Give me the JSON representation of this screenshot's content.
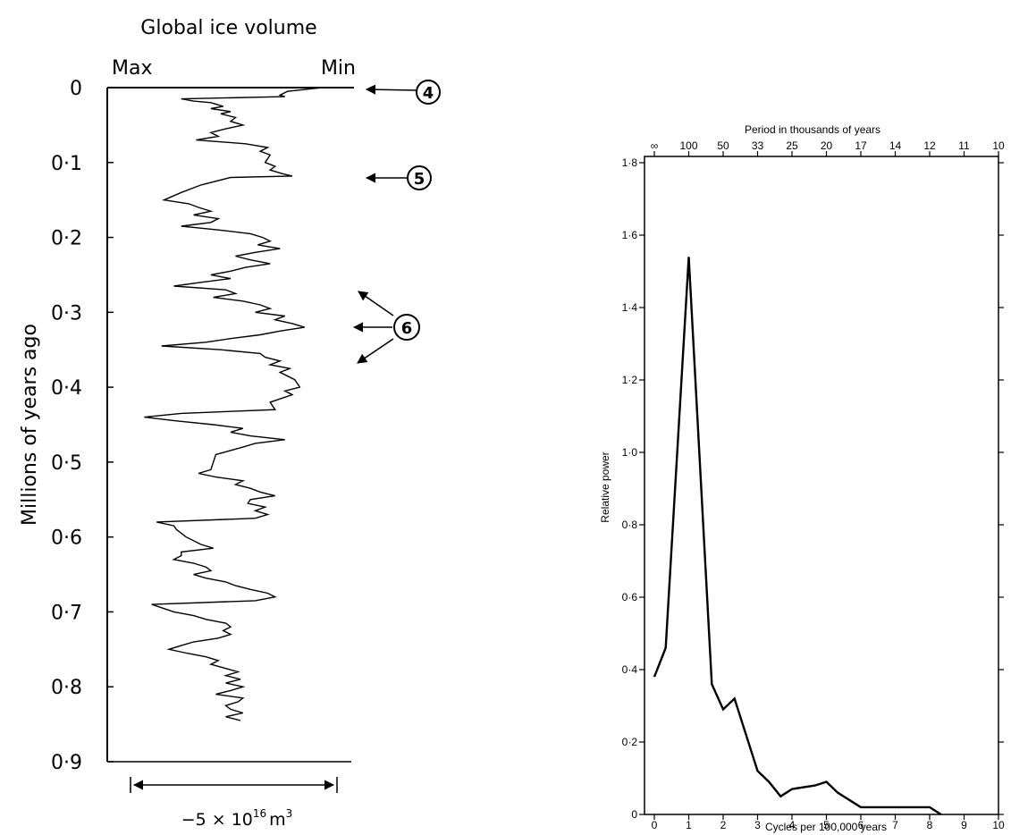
{
  "chart_data": [
    {
      "type": "line",
      "orientation": "vertical",
      "title": "Global ice volume",
      "x_end_labels": {
        "left": "Max",
        "right": "Min"
      },
      "ylabel": "Millions of years ago",
      "ylim": [
        0,
        0.9
      ],
      "y_ticks": [
        0,
        0.1,
        0.2,
        0.3,
        0.4,
        0.5,
        0.6,
        0.7,
        0.8,
        0.9
      ],
      "y_tick_labels": [
        "0",
        "0·1",
        "0·2",
        "0·3",
        "0·4",
        "0·5",
        "0·6",
        "0·7",
        "0·8",
        "0·9"
      ],
      "scale_bar": {
        "label_base": "−5 × 10",
        "label_exp": "16",
        "label_unit": "m",
        "label_unit_exp": "3"
      },
      "x_axis": "relative ice volume (0 = Max, 1 = Min)",
      "annotations": [
        {
          "label": "4",
          "age": 0.0
        },
        {
          "label": "5",
          "age": 0.12
        },
        {
          "label": "6",
          "ages": [
            0.27,
            0.32,
            0.37
          ]
        }
      ],
      "series": [
        {
          "values": [
            [
              0.0,
              0.87
            ],
            [
              0.005,
              0.73
            ],
            [
              0.01,
              0.7
            ],
            [
              0.012,
              0.72
            ],
            [
              0.015,
              0.3
            ],
            [
              0.018,
              0.35
            ],
            [
              0.02,
              0.42
            ],
            [
              0.025,
              0.47
            ],
            [
              0.028,
              0.42
            ],
            [
              0.032,
              0.5
            ],
            [
              0.035,
              0.46
            ],
            [
              0.04,
              0.52
            ],
            [
              0.045,
              0.5
            ],
            [
              0.05,
              0.55
            ],
            [
              0.055,
              0.48
            ],
            [
              0.06,
              0.42
            ],
            [
              0.065,
              0.45
            ],
            [
              0.07,
              0.36
            ],
            [
              0.075,
              0.56
            ],
            [
              0.08,
              0.65
            ],
            [
              0.085,
              0.62
            ],
            [
              0.09,
              0.66
            ],
            [
              0.1,
              0.64
            ],
            [
              0.105,
              0.68
            ],
            [
              0.11,
              0.66
            ],
            [
              0.115,
              0.71
            ],
            [
              0.118,
              0.75
            ],
            [
              0.12,
              0.5
            ],
            [
              0.13,
              0.38
            ],
            [
              0.14,
              0.3
            ],
            [
              0.15,
              0.23
            ],
            [
              0.155,
              0.33
            ],
            [
              0.16,
              0.37
            ],
            [
              0.165,
              0.42
            ],
            [
              0.17,
              0.35
            ],
            [
              0.175,
              0.45
            ],
            [
              0.18,
              0.42
            ],
            [
              0.185,
              0.3
            ],
            [
              0.19,
              0.45
            ],
            [
              0.195,
              0.58
            ],
            [
              0.2,
              0.63
            ],
            [
              0.205,
              0.66
            ],
            [
              0.21,
              0.61
            ],
            [
              0.215,
              0.7
            ],
            [
              0.22,
              0.6
            ],
            [
              0.225,
              0.52
            ],
            [
              0.23,
              0.58
            ],
            [
              0.235,
              0.66
            ],
            [
              0.24,
              0.56
            ],
            [
              0.245,
              0.5
            ],
            [
              0.25,
              0.42
            ],
            [
              0.255,
              0.5
            ],
            [
              0.26,
              0.38
            ],
            [
              0.265,
              0.27
            ],
            [
              0.27,
              0.48
            ],
            [
              0.275,
              0.52
            ],
            [
              0.28,
              0.43
            ],
            [
              0.285,
              0.55
            ],
            [
              0.29,
              0.62
            ],
            [
              0.295,
              0.66
            ],
            [
              0.3,
              0.6
            ],
            [
              0.305,
              0.72
            ],
            [
              0.31,
              0.68
            ],
            [
              0.315,
              0.75
            ],
            [
              0.32,
              0.8
            ],
            [
              0.325,
              0.7
            ],
            [
              0.33,
              0.62
            ],
            [
              0.335,
              0.5
            ],
            [
              0.34,
              0.4
            ],
            [
              0.345,
              0.22
            ],
            [
              0.35,
              0.46
            ],
            [
              0.355,
              0.62
            ],
            [
              0.36,
              0.64
            ],
            [
              0.365,
              0.7
            ],
            [
              0.37,
              0.66
            ],
            [
              0.375,
              0.74
            ],
            [
              0.38,
              0.7
            ],
            [
              0.39,
              0.76
            ],
            [
              0.4,
              0.78
            ],
            [
              0.405,
              0.72
            ],
            [
              0.41,
              0.75
            ],
            [
              0.42,
              0.66
            ],
            [
              0.43,
              0.68
            ],
            [
              0.435,
              0.3
            ],
            [
              0.44,
              0.15
            ],
            [
              0.445,
              0.28
            ],
            [
              0.45,
              0.43
            ],
            [
              0.455,
              0.55
            ],
            [
              0.46,
              0.5
            ],
            [
              0.465,
              0.58
            ],
            [
              0.47,
              0.72
            ],
            [
              0.475,
              0.6
            ],
            [
              0.48,
              0.55
            ],
            [
              0.49,
              0.44
            ],
            [
              0.5,
              0.43
            ],
            [
              0.51,
              0.42
            ],
            [
              0.515,
              0.37
            ],
            [
              0.52,
              0.44
            ],
            [
              0.525,
              0.55
            ],
            [
              0.53,
              0.52
            ],
            [
              0.535,
              0.58
            ],
            [
              0.54,
              0.62
            ],
            [
              0.545,
              0.68
            ],
            [
              0.55,
              0.58
            ],
            [
              0.555,
              0.57
            ],
            [
              0.56,
              0.64
            ],
            [
              0.565,
              0.6
            ],
            [
              0.57,
              0.65
            ],
            [
              0.575,
              0.6
            ],
            [
              0.58,
              0.2
            ],
            [
              0.585,
              0.27
            ],
            [
              0.59,
              0.28
            ],
            [
              0.6,
              0.32
            ],
            [
              0.61,
              0.38
            ],
            [
              0.615,
              0.43
            ],
            [
              0.62,
              0.3
            ],
            [
              0.625,
              0.3
            ],
            [
              0.63,
              0.27
            ],
            [
              0.635,
              0.35
            ],
            [
              0.64,
              0.4
            ],
            [
              0.645,
              0.42
            ],
            [
              0.65,
              0.35
            ],
            [
              0.655,
              0.4
            ],
            [
              0.66,
              0.48
            ],
            [
              0.665,
              0.52
            ],
            [
              0.67,
              0.58
            ],
            [
              0.675,
              0.65
            ],
            [
              0.68,
              0.68
            ],
            [
              0.685,
              0.6
            ],
            [
              0.69,
              0.18
            ],
            [
              0.7,
              0.27
            ],
            [
              0.705,
              0.35
            ],
            [
              0.71,
              0.4
            ],
            [
              0.715,
              0.48
            ],
            [
              0.72,
              0.5
            ],
            [
              0.725,
              0.47
            ],
            [
              0.73,
              0.5
            ],
            [
              0.735,
              0.45
            ],
            [
              0.74,
              0.35
            ],
            [
              0.745,
              0.3
            ],
            [
              0.75,
              0.25
            ],
            [
              0.755,
              0.32
            ],
            [
              0.76,
              0.4
            ],
            [
              0.765,
              0.45
            ],
            [
              0.77,
              0.42
            ],
            [
              0.78,
              0.53
            ],
            [
              0.785,
              0.48
            ],
            [
              0.79,
              0.54
            ],
            [
              0.795,
              0.48
            ],
            [
              0.8,
              0.55
            ],
            [
              0.805,
              0.5
            ],
            [
              0.81,
              0.44
            ],
            [
              0.815,
              0.55
            ],
            [
              0.82,
              0.53
            ],
            [
              0.825,
              0.48
            ],
            [
              0.83,
              0.5
            ],
            [
              0.835,
              0.55
            ],
            [
              0.84,
              0.48
            ],
            [
              0.845,
              0.54
            ]
          ]
        }
      ]
    },
    {
      "type": "line",
      "title": "Period in thousands of years",
      "xlabel": "Cycles per 100,000 years",
      "ylabel": "Relative power",
      "xlim": [
        0,
        10
      ],
      "ylim": [
        0,
        1.8
      ],
      "x_ticks": [
        0,
        1,
        2,
        3,
        4,
        5,
        6,
        7,
        8,
        9,
        10
      ],
      "y_ticks": [
        0,
        0.2,
        0.4,
        0.6,
        0.8,
        1.0,
        1.2,
        1.4,
        1.6,
        1.8
      ],
      "y_tick_labels": [
        "0",
        "0·2",
        "0·4",
        "0·6",
        "0·8",
        "1·0",
        "1·2",
        "1·4",
        "1·6",
        "1·8"
      ],
      "top_axis_labels": [
        "∞",
        "100",
        "50",
        "33",
        "25",
        "20",
        "17",
        "14",
        "12",
        "11",
        "10"
      ],
      "series": [
        {
          "x": [
            0,
            0.33,
            1.0,
            1.67,
            2.0,
            2.33,
            3.0,
            3.33,
            3.67,
            4.0,
            4.67,
            5.0,
            5.33,
            6.0,
            6.33,
            7.0,
            8.0,
            8.33
          ],
          "y": [
            0.38,
            0.46,
            1.54,
            0.36,
            0.29,
            0.32,
            0.12,
            0.09,
            0.05,
            0.07,
            0.08,
            0.09,
            0.06,
            0.02,
            0.02,
            0.02,
            0.02,
            0.0
          ]
        }
      ]
    }
  ]
}
